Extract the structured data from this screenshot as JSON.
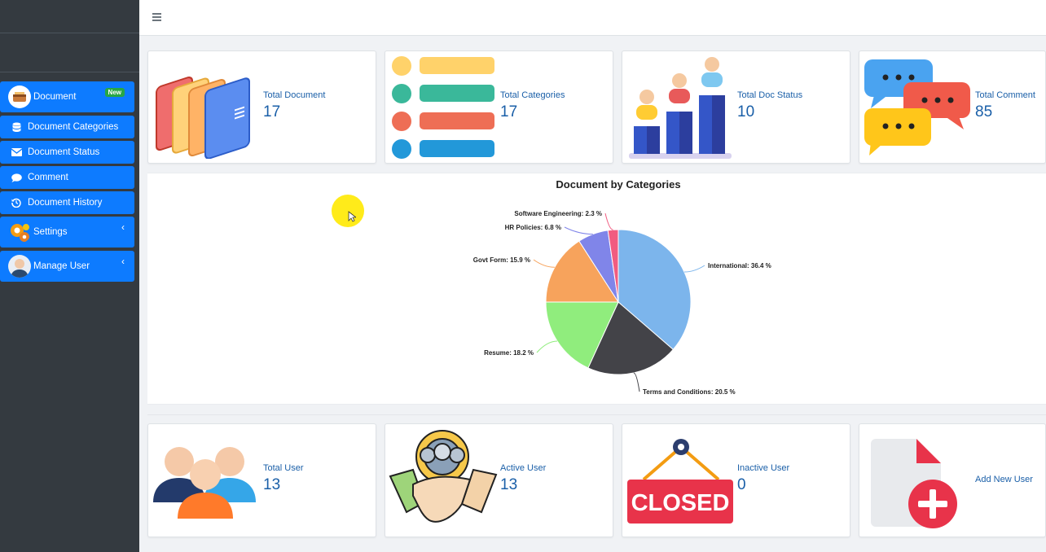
{
  "sidebar": {
    "items": [
      {
        "label": "Document",
        "icon": "document-box-icon",
        "badge": "New"
      },
      {
        "label": "Document Categories",
        "icon": "database-icon"
      },
      {
        "label": "Document Status",
        "icon": "envelope-icon"
      },
      {
        "label": "Comment",
        "icon": "speech-bubble-icon"
      },
      {
        "label": "Document History",
        "icon": "history-icon"
      },
      {
        "label": "Settings",
        "icon": "gears-icon"
      },
      {
        "label": "Manage User",
        "icon": "user-avatar-icon"
      }
    ]
  },
  "stats_top": [
    {
      "label": "Total Document",
      "value": "17",
      "icon": "folders-icon"
    },
    {
      "label": "Total Categories",
      "value": "17",
      "icon": "colored-list-icon"
    },
    {
      "label": "Total Doc Status",
      "value": "10",
      "icon": "people-bar-chart-icon"
    },
    {
      "label": "Total Comment",
      "value": "85",
      "icon": "chat-bubbles-icon"
    }
  ],
  "stats_bottom": [
    {
      "label": "Total User",
      "value": "13",
      "icon": "users-group-icon"
    },
    {
      "label": "Active User",
      "value": "13",
      "icon": "handshake-gear-icon"
    },
    {
      "label": "Inactive User",
      "value": "0",
      "icon": "closed-sign-icon",
      "sign_text": "CLOSED"
    },
    {
      "label": "Add New User",
      "value": "",
      "icon": "add-document-icon"
    }
  ],
  "chart_data": {
    "type": "pie",
    "title": "Document by Categories",
    "slices": [
      {
        "name": "International",
        "value": 36.4,
        "label": "International: 36.4 %",
        "color": "#7cb5ec"
      },
      {
        "name": "Terms and Conditions",
        "value": 20.5,
        "label": "Terms and Conditions: 20.5 %",
        "color": "#434348"
      },
      {
        "name": "Resume",
        "value": 18.2,
        "label": "Resume: 18.2 %",
        "color": "#90ed7d"
      },
      {
        "name": "Govt Form",
        "value": 15.9,
        "label": "Govt Form: 15.9 %",
        "color": "#f7a35c"
      },
      {
        "name": "HR Policies",
        "value": 6.8,
        "label": "HR Policies: 6.8 %",
        "color": "#8085e9"
      },
      {
        "name": "Software Engineering",
        "value": 2.3,
        "label": "Software Engineering: 2.3 %",
        "color": "#f15c80"
      }
    ]
  },
  "colors": {
    "sidebar_bg": "#343a40",
    "nav_blue": "#0d7bff",
    "stat_text": "#1a5fa8"
  }
}
